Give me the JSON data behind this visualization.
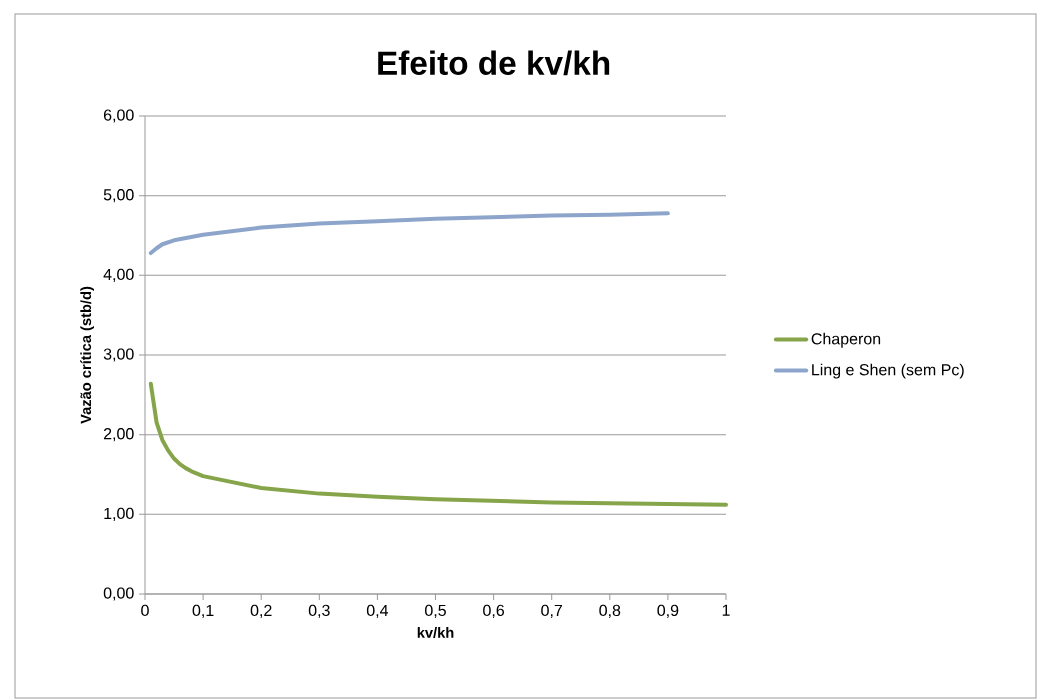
{
  "chart_data": {
    "type": "line",
    "title": "Efeito de kv/kh",
    "xlabel": "kv/kh",
    "ylabel": "Vazão crítica (stb/d)",
    "series": [
      {
        "name": "Chaperon",
        "color": "#86a44a",
        "x": [
          0.01,
          0.02,
          0.03,
          0.04,
          0.05,
          0.06,
          0.07,
          0.08,
          0.1,
          0.2,
          0.3,
          0.4,
          0.5,
          0.6,
          0.7,
          0.8,
          0.9,
          1.0
        ],
        "values": [
          2.64,
          2.15,
          1.93,
          1.8,
          1.7,
          1.63,
          1.58,
          1.54,
          1.48,
          1.33,
          1.26,
          1.22,
          1.19,
          1.17,
          1.15,
          1.14,
          1.13,
          1.12
        ]
      },
      {
        "name": "Ling e Shen (sem Pc)",
        "color": "#8ea5cb",
        "x": [
          0.01,
          0.02,
          0.03,
          0.05,
          0.1,
          0.2,
          0.3,
          0.4,
          0.5,
          0.6,
          0.7,
          0.8,
          0.9
        ],
        "values": [
          4.28,
          4.34,
          4.39,
          4.44,
          4.51,
          4.6,
          4.65,
          4.68,
          4.71,
          4.73,
          4.75,
          4.76,
          4.78
        ]
      }
    ],
    "xlim": [
      0,
      1
    ],
    "ylim": [
      0,
      6
    ],
    "xticks": [
      0,
      {
        "value": 0.1,
        "label": "0,1"
      },
      {
        "value": 0.2,
        "label": "0,2"
      },
      {
        "value": 0.3,
        "label": "0,3"
      },
      {
        "value": 0.4,
        "label": "0,4"
      },
      {
        "value": 0.5,
        "label": "0,5"
      },
      {
        "value": 0.6,
        "label": "0,6"
      },
      {
        "value": 0.7,
        "label": "0,7"
      },
      {
        "value": 0.8,
        "label": "0,8"
      },
      {
        "value": 0.9,
        "label": "0,9"
      },
      1
    ],
    "yticks": [
      {
        "value": 0,
        "label": "0,00"
      },
      {
        "value": 1,
        "label": "1,00"
      },
      {
        "value": 2,
        "label": "2,00"
      },
      {
        "value": 3,
        "label": "3,00"
      },
      {
        "value": 4,
        "label": "4,00"
      },
      {
        "value": 5,
        "label": "5,00"
      },
      {
        "value": 6,
        "label": "6,00"
      }
    ],
    "grid": "y",
    "legend": "right",
    "marker": "none",
    "line_style": "solid"
  }
}
